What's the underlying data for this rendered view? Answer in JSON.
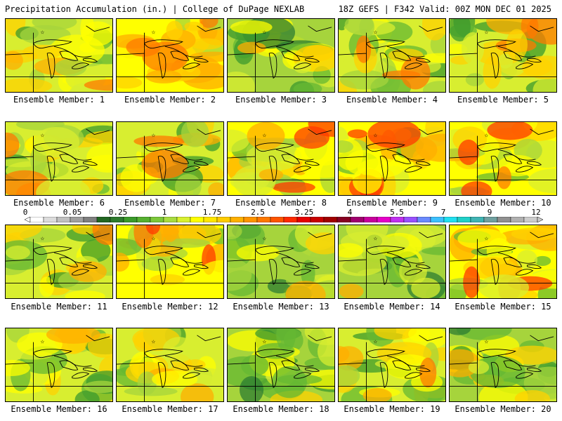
{
  "header": {
    "title": "Precipitation Accumulation (in.) | College of DuPage NEXLAB",
    "run_info": "18Z GEFS | F342 Valid: 00Z MON DEC 01 2025"
  },
  "panel_caption_prefix": "Ensemble Member: ",
  "members": [
    {
      "id": 1,
      "intensity": 0.55
    },
    {
      "id": 2,
      "intensity": 0.9
    },
    {
      "id": 3,
      "intensity": 0.3
    },
    {
      "id": 4,
      "intensity": 0.7
    },
    {
      "id": 5,
      "intensity": 0.65
    },
    {
      "id": 6,
      "intensity": 0.7
    },
    {
      "id": 7,
      "intensity": 0.6
    },
    {
      "id": 8,
      "intensity": 0.85
    },
    {
      "id": 9,
      "intensity": 0.75
    },
    {
      "id": 10,
      "intensity": 0.8
    },
    {
      "id": 11,
      "intensity": 0.65
    },
    {
      "id": 12,
      "intensity": 0.9
    },
    {
      "id": 13,
      "intensity": 0.35
    },
    {
      "id": 14,
      "intensity": 0.4
    },
    {
      "id": 15,
      "intensity": 0.85
    },
    {
      "id": 16,
      "intensity": 0.55
    },
    {
      "id": 17,
      "intensity": 0.5
    },
    {
      "id": 18,
      "intensity": 0.3
    },
    {
      "id": 19,
      "intensity": 0.6
    },
    {
      "id": 20,
      "intensity": 0.35
    }
  ],
  "colorbar": {
    "labels": [
      "0",
      "0.05",
      "0.25",
      "1",
      "1.75",
      "2.5",
      "3.25",
      "4",
      "5.5",
      "7",
      "9",
      "12"
    ],
    "colors": [
      "#ffffff",
      "#dcdcdc",
      "#c0c0c0",
      "#a0a0a0",
      "#808080",
      "#226622",
      "#2d7a2d",
      "#3a9a2a",
      "#55b030",
      "#7cc83a",
      "#a8dc40",
      "#d8f030",
      "#ffff00",
      "#ffe600",
      "#ffcc00",
      "#ffb000",
      "#ff9400",
      "#ff7800",
      "#ff5400",
      "#ff2a00",
      "#e60000",
      "#c80000",
      "#a00000",
      "#880022",
      "#a0006e",
      "#c8009c",
      "#e600c8",
      "#c030f0",
      "#9850ff",
      "#6a8aff",
      "#3cc0ff",
      "#20e0f0",
      "#20d0c8",
      "#40b4b4",
      "#70a0a0",
      "#909090",
      "#b0b0b0",
      "#cccccc"
    ]
  }
}
